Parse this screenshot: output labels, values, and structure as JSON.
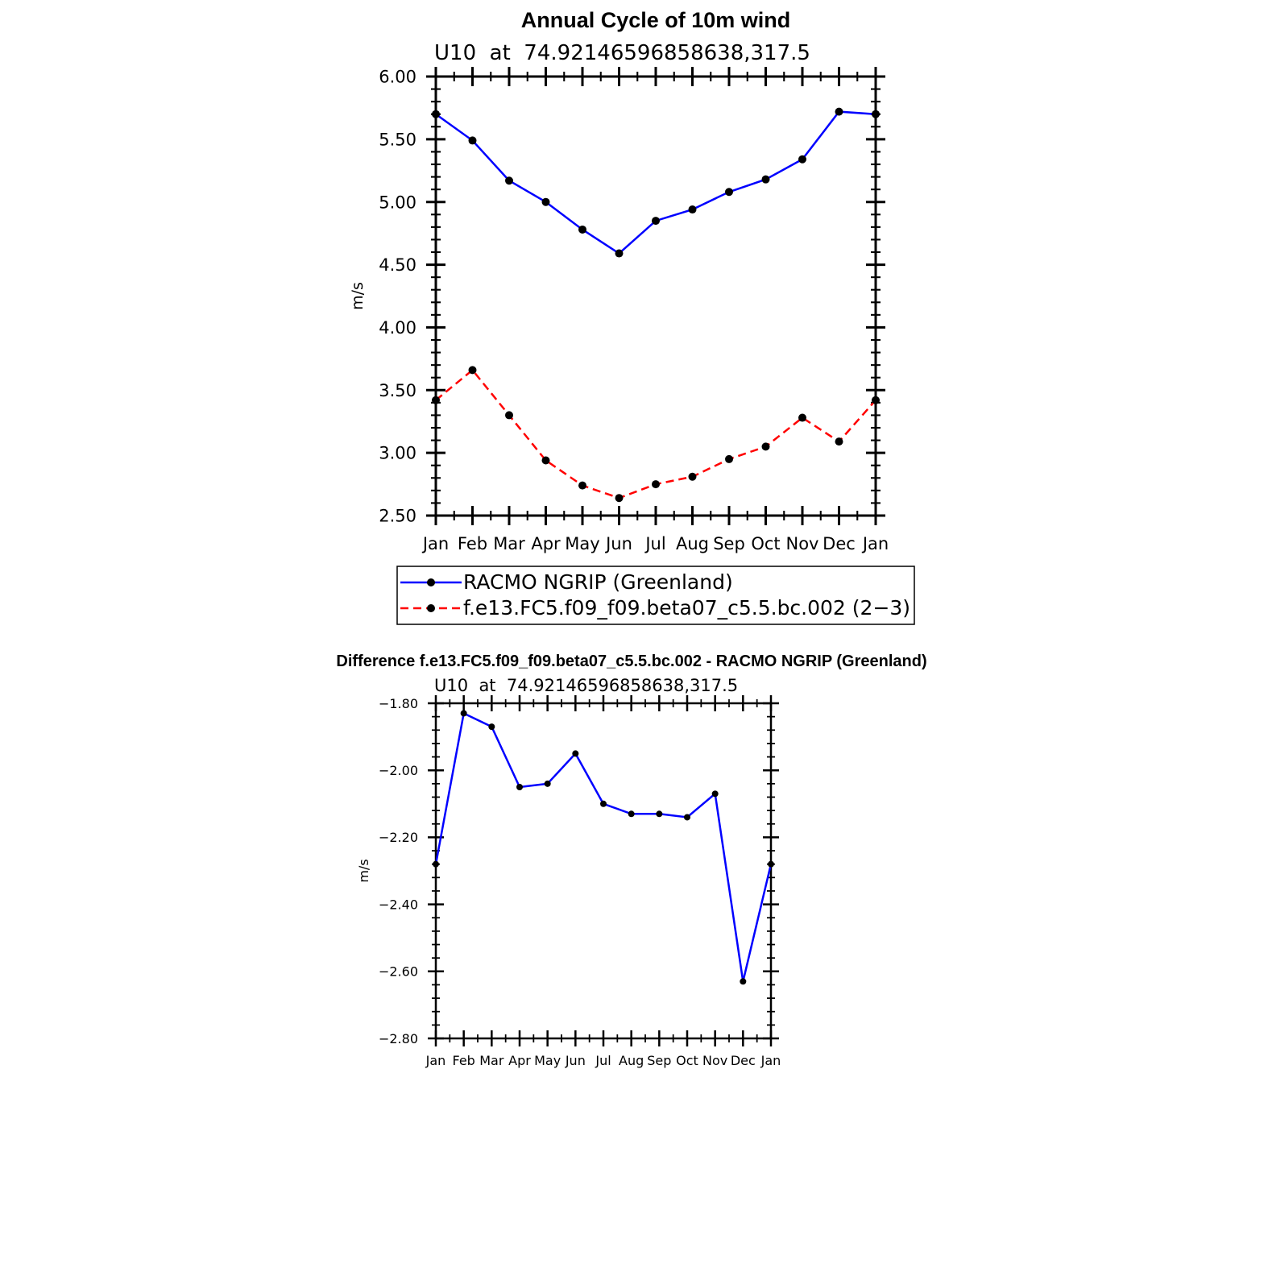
{
  "chart_data": [
    {
      "type": "line",
      "title": "Annual Cycle of 10m wind",
      "subtitle": "U10  at  74.92146596858638,317.5",
      "xlabel": "",
      "ylabel": "m/s",
      "categories": [
        "Jan",
        "Feb",
        "Mar",
        "Apr",
        "May",
        "Jun",
        "Jul",
        "Aug",
        "Sep",
        "Oct",
        "Nov",
        "Dec",
        "Jan"
      ],
      "ylim": [
        2.5,
        6.0
      ],
      "yticks": [
        "2.50",
        "3.00",
        "3.50",
        "4.00",
        "4.50",
        "5.00",
        "5.50",
        "6.00"
      ],
      "grid": false,
      "legend_position": "bottom",
      "series": [
        {
          "name": "RACMO NGRIP (Greenland)",
          "color": "#0000ff",
          "style": "solid",
          "values": [
            5.7,
            5.49,
            5.17,
            5.0,
            4.78,
            4.59,
            4.85,
            4.94,
            5.08,
            5.18,
            5.34,
            5.72,
            5.7
          ]
        },
        {
          "name": "f.e13.FC5.f09_f09.beta07_c5.5.bc.002 (2−3)",
          "color": "#ff0000",
          "style": "dashed",
          "values": [
            3.42,
            3.66,
            3.3,
            2.94,
            2.74,
            2.64,
            2.75,
            2.81,
            2.95,
            3.05,
            3.28,
            3.09,
            3.42
          ]
        }
      ]
    },
    {
      "type": "line",
      "title": "Difference f.e13.FC5.f09_f09.beta07_c5.5.bc.002 - RACMO NGRIP (Greenland)",
      "subtitle": "U10  at  74.92146596858638,317.5",
      "xlabel": "",
      "ylabel": "m/s",
      "categories": [
        "Jan",
        "Feb",
        "Mar",
        "Apr",
        "May",
        "Jun",
        "Jul",
        "Aug",
        "Sep",
        "Oct",
        "Nov",
        "Dec",
        "Jan"
      ],
      "ylim": [
        -2.8,
        -1.8
      ],
      "yticks": [
        "−2.80",
        "−2.60",
        "−2.40",
        "−2.20",
        "−2.00",
        "−1.80"
      ],
      "grid": false,
      "series": [
        {
          "color": "#0000ff",
          "style": "solid",
          "values": [
            -2.28,
            -1.83,
            -1.87,
            -2.05,
            -2.04,
            -1.95,
            -2.1,
            -2.13,
            -2.13,
            -2.14,
            -2.07,
            -2.63,
            -2.28
          ]
        }
      ]
    }
  ]
}
